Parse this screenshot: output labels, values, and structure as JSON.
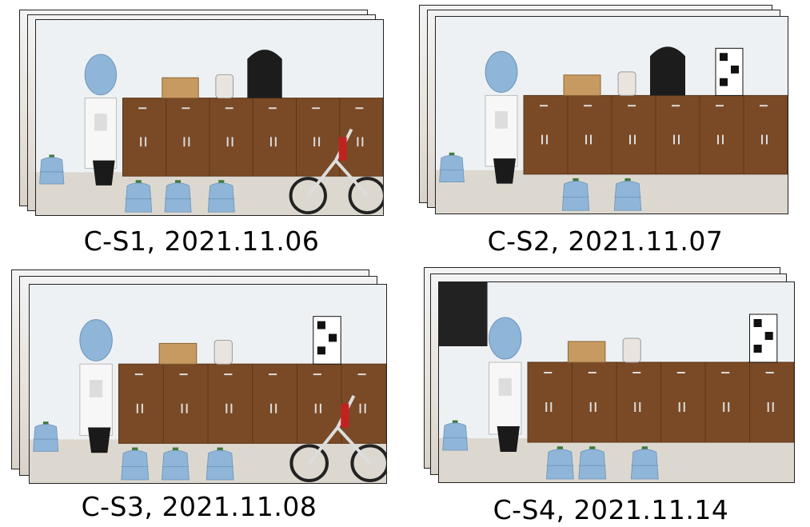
{
  "panels": [
    {
      "caption": "C-S1, 2021.11.06"
    },
    {
      "caption": "C-S2, 2021.11.07"
    },
    {
      "caption": "C-S3, 2021.11.08"
    },
    {
      "caption": "C-S4, 2021.11.14"
    }
  ],
  "colors": {
    "wall": "#eef1f3",
    "floor": "#ddd8cf",
    "cabinet": "#7a4a26",
    "water_bottle": "#8fb6d9",
    "frame_border": "#222222"
  }
}
